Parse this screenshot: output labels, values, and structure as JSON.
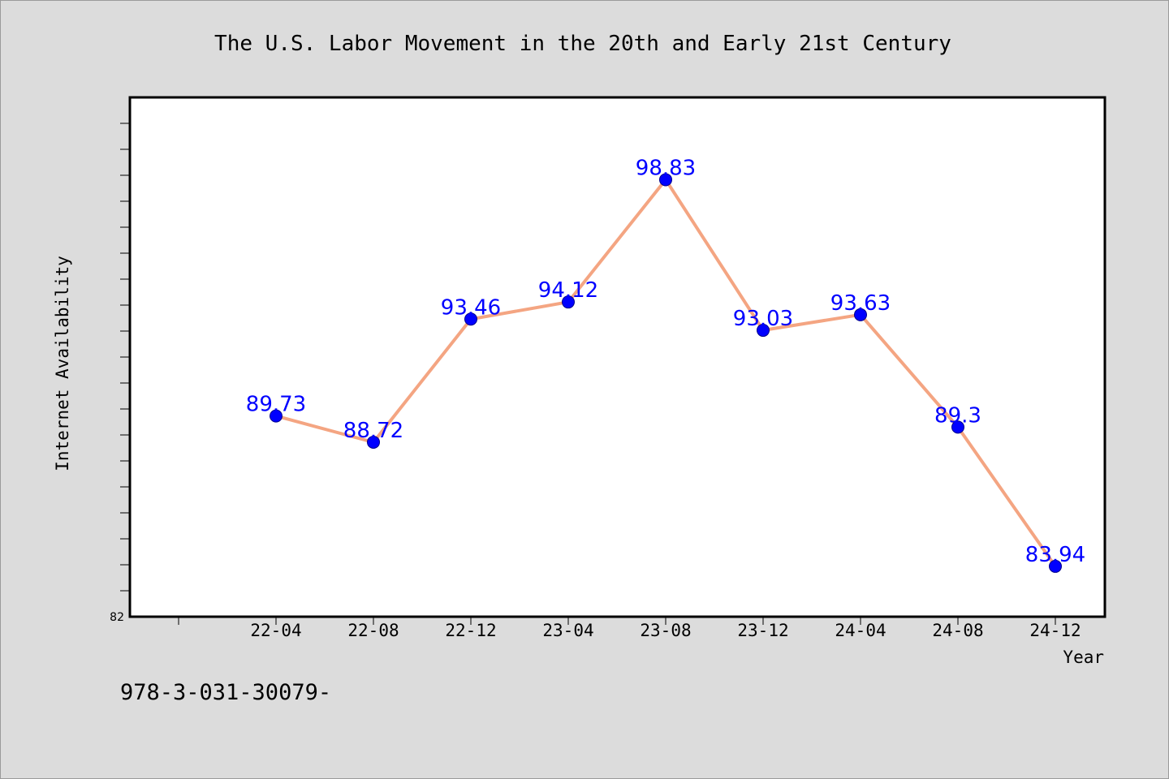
{
  "chart_data": {
    "type": "line",
    "title": "The U.S. Labor Movement in the 20th and Early 21st Century",
    "xlabel": "Year",
    "ylabel": "Internet Availability",
    "categories": [
      "22-04",
      "22-08",
      "22-12",
      "23-04",
      "23-08",
      "23-12",
      "24-04",
      "24-08",
      "24-12"
    ],
    "series": [
      {
        "values": [
          89.73,
          88.72,
          93.46,
          94.12,
          98.83,
          93.03,
          93.63,
          89.3,
          83.94
        ],
        "data_labels": [
          "89.73",
          "88.72",
          "93.46",
          "94.12",
          "98.83",
          "93.03",
          "93.63",
          "89.3",
          "83.94"
        ]
      }
    ],
    "ylim": [
      82,
      102
    ],
    "y_min_label": "82",
    "grid": false,
    "legend": "none",
    "colors": {
      "line": "#f4a582",
      "marker": "#0000ff",
      "label": "#0000ff",
      "plot_background": "#ffffff",
      "page_background": "#dcdcdc"
    }
  },
  "footer": {
    "text": "978-3-031-30079-"
  }
}
